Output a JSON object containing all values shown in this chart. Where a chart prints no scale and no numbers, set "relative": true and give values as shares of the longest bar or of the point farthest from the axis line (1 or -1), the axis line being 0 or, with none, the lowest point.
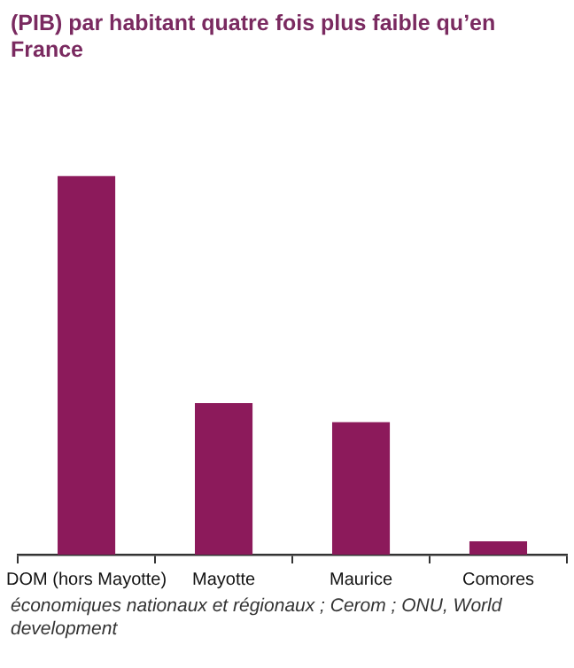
{
  "chart_data": {
    "type": "bar",
    "title": "(PIB) par habitant quatre fois plus faible qu’en France",
    "categories": [
      "DOM (hors Mayotte)",
      "Mayotte",
      "Maurice",
      "Comores"
    ],
    "values": [
      1,
      0.4,
      0.35,
      0.035
    ],
    "color": "#8c1a5b",
    "relative": true,
    "grid": false,
    "legend": false,
    "annotations": [
      "économiques nationaux et régionaux ; Cerom ; ONU, World development"
    ]
  }
}
